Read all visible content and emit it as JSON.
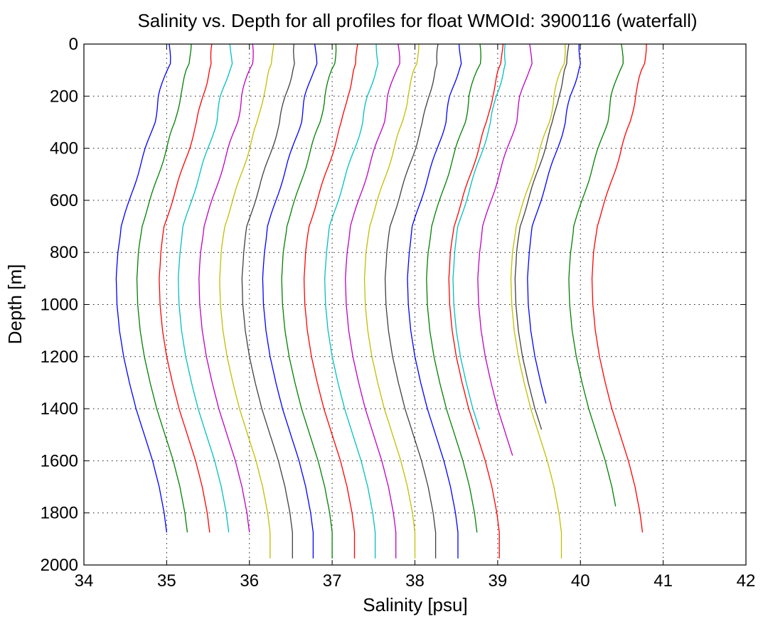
{
  "chart_data": {
    "type": "line",
    "title": "Salinity vs. Depth for all profiles for float WMOId: 3900116 (waterfall)",
    "xlabel": "Salinity [psu]",
    "ylabel": "Depth [m]",
    "xlim": [
      34,
      42
    ],
    "ylim": [
      0,
      2000
    ],
    "y_reversed": true,
    "grid": true,
    "x_ticks": [
      "34",
      "35",
      "36",
      "37",
      "38",
      "39",
      "40",
      "41",
      "42"
    ],
    "y_ticks": [
      "0",
      "200",
      "400",
      "600",
      "800",
      "1000",
      "1200",
      "1400",
      "1600",
      "1800",
      "2000"
    ],
    "colors": [
      "#0000ff",
      "#008000",
      "#ff0000",
      "#00bfbf",
      "#bf00bf",
      "#bfbf00",
      "#404040"
    ],
    "shape_depths": [
      0,
      80,
      100,
      200,
      300,
      400,
      500,
      600,
      700,
      800,
      900,
      1000,
      1100,
      1200,
      1300,
      1400,
      1500,
      1600,
      1700,
      1800,
      1875
    ],
    "shape_offsets": [
      0.0,
      0.0,
      -0.03,
      -0.12,
      -0.18,
      -0.28,
      -0.38,
      -0.48,
      -0.58,
      -0.62,
      -0.64,
      -0.63,
      -0.6,
      -0.55,
      -0.48,
      -0.4,
      -0.3,
      -0.2,
      -0.12,
      -0.06,
      -0.03
    ],
    "series": [
      {
        "surface": 35.03,
        "max_depth": 1875
      },
      {
        "surface": 35.28,
        "max_depth": 1875
      },
      {
        "surface": 35.55,
        "max_depth": 1875
      },
      {
        "surface": 35.78,
        "max_depth": 1875
      },
      {
        "surface": 36.03,
        "max_depth": 1875
      },
      {
        "surface": 36.28,
        "max_depth": 1975
      },
      {
        "surface": 36.55,
        "max_depth": 1975
      },
      {
        "surface": 36.8,
        "max_depth": 1975
      },
      {
        "surface": 37.03,
        "max_depth": 1975
      },
      {
        "surface": 37.3,
        "max_depth": 1975
      },
      {
        "surface": 37.55,
        "max_depth": 1975
      },
      {
        "surface": 37.8,
        "max_depth": 1975
      },
      {
        "surface": 38.03,
        "max_depth": 1975
      },
      {
        "surface": 38.28,
        "max_depth": 1975
      },
      {
        "surface": 38.55,
        "max_depth": 1975
      },
      {
        "surface": 38.78,
        "max_depth": 1875
      },
      {
        "surface": 39.05,
        "max_depth": 1975
      },
      {
        "surface": 39.1,
        "max_depth": 1480
      },
      {
        "surface": 39.4,
        "max_depth": 1580
      },
      {
        "surface": 39.8,
        "max_depth": 1975
      },
      {
        "surface": 39.85,
        "max_depth": 1480
      },
      {
        "surface": 40.0,
        "max_depth": 1380
      },
      {
        "surface": 40.5,
        "max_depth": 1775
      },
      {
        "surface": 40.78,
        "max_depth": 1875
      }
    ]
  }
}
